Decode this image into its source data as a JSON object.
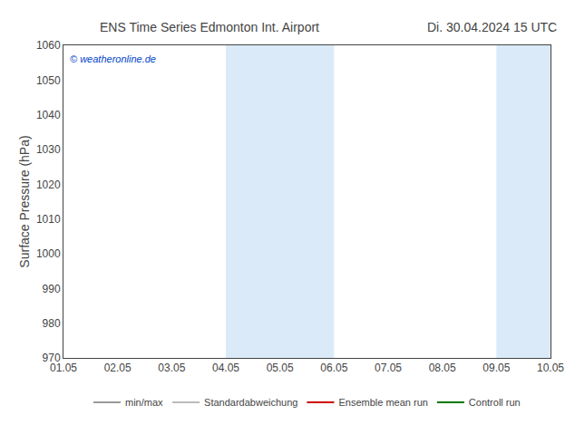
{
  "chart_data": {
    "type": "line",
    "title": "ENS Time Series Edmonton Int. Airport",
    "subtitle": "Di. 30.04.2024 15 UTC",
    "y_label": "Surface Pressure (hPa)",
    "categories": [
      "01.05",
      "02.05",
      "03.05",
      "04.05",
      "05.05",
      "06.05",
      "07.05",
      "08.05",
      "09.05",
      "10.05"
    ],
    "series": [
      {
        "name": "min/max",
        "color": "#999999",
        "values": [
          null,
          null,
          null,
          null,
          null,
          null,
          null,
          null,
          null,
          null
        ]
      },
      {
        "name": "Standardabweichung",
        "color": "#bbbbbb",
        "values": [
          null,
          null,
          null,
          null,
          null,
          null,
          null,
          null,
          null,
          null
        ]
      },
      {
        "name": "Ensemble mean run",
        "color": "#cc0000",
        "values": [
          null,
          null,
          null,
          null,
          null,
          null,
          null,
          null,
          null,
          null
        ]
      },
      {
        "name": "Controll run",
        "color": "#007700",
        "values": [
          null,
          null,
          null,
          null,
          null,
          null,
          null,
          null,
          null,
          null
        ]
      }
    ],
    "shaded_bands": [
      {
        "from": "04.05",
        "to": "06.05",
        "color": "#daeaf8"
      },
      {
        "from": "09.05",
        "to": "10.05",
        "color": "#daeaf8"
      }
    ],
    "annotations": [
      {
        "text": "© weatheronline.de",
        "color": "#0044cc"
      }
    ],
    "ylim": [
      970,
      1060
    ],
    "yticks": [
      970,
      980,
      990,
      1000,
      1010,
      1020,
      1030,
      1040,
      1050,
      1060
    ],
    "grid": false
  }
}
